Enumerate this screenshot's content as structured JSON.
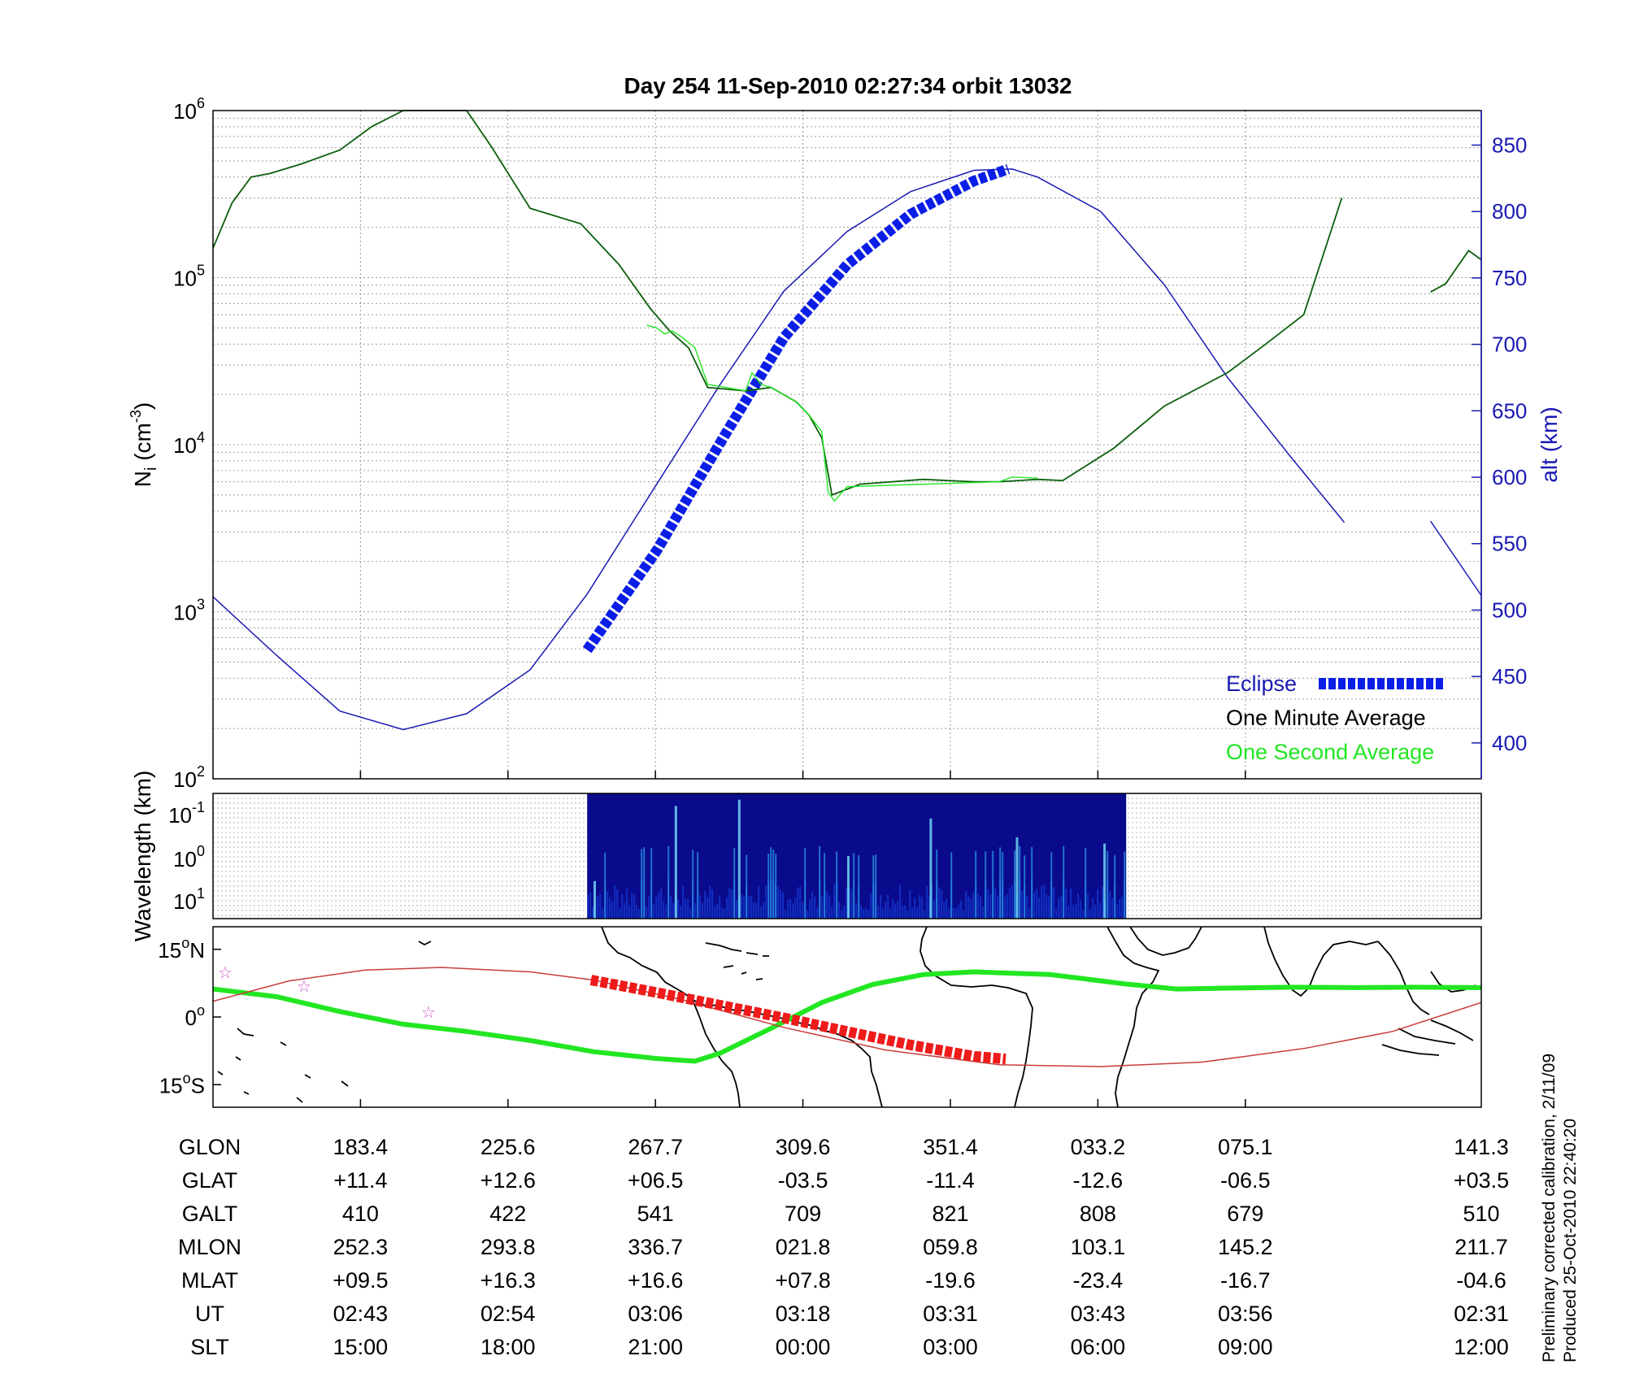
{
  "title": "Day 254  11-Sep-2010 02:27:34   orbit 13032",
  "colors": {
    "eclipse": "#0a1ee6",
    "altitude": "#1a1ab4",
    "minute_avg": "#0b5e0b",
    "second_avg": "#22e622",
    "track_red": "#ee1b1b",
    "track_thin": "#c83c3c",
    "stars": "#cc55cc",
    "map": "#000000",
    "spectrogram": "#0a0a8c"
  },
  "chart_data": [
    {
      "type": "line",
      "panel": "density",
      "ylabel": "N",
      "ylabel_sub": "i",
      "ylabel_unit": "(cm",
      "ylabel_unit_sup": "-3",
      "ylabel_close": ")",
      "yscale": "log",
      "ylim": [
        100,
        1000000
      ],
      "y_ticks": [
        {
          "base": "10",
          "exp": "2"
        },
        {
          "base": "10",
          "exp": "3"
        },
        {
          "base": "10",
          "exp": "4"
        },
        {
          "base": "10",
          "exp": "5"
        },
        {
          "base": "10",
          "exp": "6"
        }
      ],
      "y2label": "alt (km)",
      "y2lim": [
        373,
        876
      ],
      "y2_ticks": [
        "400",
        "450",
        "500",
        "550",
        "600",
        "650",
        "700",
        "750",
        "800",
        "850"
      ],
      "x_domain": [
        0,
        1
      ],
      "grid": true,
      "legend": {
        "position": "bottom-right",
        "entries": [
          {
            "label": "Eclipse",
            "color": "#0a1ee6"
          },
          {
            "label": "One Minute Average",
            "color": "#000000"
          },
          {
            "label": "One Second Average",
            "color": "#22e622"
          }
        ]
      },
      "series": [
        {
          "name": "alt (km)",
          "axis": "right",
          "x": [
            0.0,
            0.05,
            0.1,
            0.15,
            0.2,
            0.25,
            0.295,
            0.35,
            0.4,
            0.45,
            0.5,
            0.55,
            0.6,
            0.63,
            0.65,
            0.7,
            0.75,
            0.8,
            0.85,
            0.892
          ],
          "y": [
            510,
            466,
            424,
            410,
            422,
            455,
            512,
            595,
            670,
            740,
            785,
            815,
            831,
            832,
            826,
            800,
            745,
            675,
            615,
            566
          ]
        },
        {
          "name": "alt (km)",
          "axis": "right",
          "x": [
            0.96,
            1.0
          ],
          "y": [
            567,
            511
          ]
        },
        {
          "name": "Eclipse",
          "axis": "right",
          "x": [
            0.295,
            0.35,
            0.4,
            0.45,
            0.5,
            0.55,
            0.6,
            0.627
          ],
          "y": [
            470,
            545,
            626,
            705,
            760,
            798,
            823,
            832
          ]
        },
        {
          "name": "One Minute Average",
          "axis": "left",
          "x": [
            0.0,
            0.015,
            0.03,
            0.045,
            0.07,
            0.1,
            0.125,
            0.15,
            0.18,
            0.2,
            0.22,
            0.25,
            0.29,
            0.32,
            0.345,
            0.36,
            0.375,
            0.39,
            0.42,
            0.44,
            0.46,
            0.47,
            0.48,
            0.488,
            0.51,
            0.56,
            0.6,
            0.62,
            0.65,
            0.67,
            0.71,
            0.75,
            0.8,
            0.83,
            0.86,
            0.89
          ],
          "y": [
            150000,
            280000,
            400000,
            420000,
            480000,
            580000,
            800000,
            1000000,
            1000000,
            1000000,
            600000,
            260000,
            210000,
            120000,
            65000,
            48000,
            38000,
            22000,
            21000,
            22000,
            18000,
            15000,
            11000,
            5000,
            5800,
            6200,
            6000,
            6000,
            6200,
            6100,
            9500,
            17000,
            27000,
            40000,
            60000,
            300000
          ]
        },
        {
          "name": "One Minute Average",
          "axis": "left",
          "x": [
            0.96,
            0.972,
            0.99,
            1.0
          ],
          "y": [
            82000,
            92000,
            145000,
            128000
          ]
        },
        {
          "name": "One Second Average",
          "axis": "left",
          "x": [
            0.342,
            0.35,
            0.356,
            0.362,
            0.37,
            0.38,
            0.39,
            0.42,
            0.425,
            0.432,
            0.44,
            0.46,
            0.47,
            0.48,
            0.485,
            0.49,
            0.5,
            0.62,
            0.63,
            0.65
          ],
          "y": [
            52000,
            50000,
            46000,
            48000,
            44000,
            38000,
            23000,
            21000,
            27000,
            23000,
            22000,
            18000,
            15000,
            12000,
            5200,
            4600,
            5600,
            6000,
            6400,
            6300
          ]
        }
      ]
    },
    {
      "type": "heatmap",
      "panel": "spectrogram",
      "ylabel": "Wavelength (km)",
      "yscale": "log",
      "y_ticks": [
        {
          "base": "10",
          "exp": "-1"
        },
        {
          "base": "10",
          "exp": "0"
        },
        {
          "base": "10",
          "exp": "1"
        }
      ],
      "x_extent": [
        0.295,
        0.72
      ],
      "colormap": [
        "#0a0a8c",
        "#1438d0",
        "#2a9ee8",
        "#7ef0ff"
      ]
    },
    {
      "type": "line",
      "panel": "ground-track",
      "y_ticks": [
        {
          "num": "15",
          "deg": "o",
          "hemi": "N"
        },
        {
          "num": "0",
          "deg": "o",
          "hemi": ""
        },
        {
          "num": "15",
          "deg": "o",
          "hemi": "S"
        }
      ],
      "ylim": [
        -20,
        20
      ],
      "series": [
        {
          "name": "magnetic equator",
          "x": [
            0.0,
            0.05,
            0.1,
            0.15,
            0.2,
            0.25,
            0.3,
            0.35,
            0.38,
            0.4,
            0.44,
            0.48,
            0.52,
            0.56,
            0.6,
            0.66,
            0.72,
            0.76,
            0.8,
            0.85,
            0.9,
            0.95,
            1.0
          ],
          "y": [
            6.2,
            4.5,
            1.2,
            -1.6,
            -3.2,
            -5.2,
            -7.7,
            -9.2,
            -9.8,
            -8.0,
            -2.5,
            3.2,
            7.2,
            9.4,
            10.0,
            9.4,
            7.3,
            6.2,
            6.4,
            6.6,
            6.5,
            6.6,
            6.5
          ]
        },
        {
          "name": "orbit track",
          "x": [
            0.0,
            0.06,
            0.12,
            0.18,
            0.25,
            0.3,
            0.37,
            0.45,
            0.53,
            0.62,
            0.7,
            0.78,
            0.86,
            0.93,
            1.0
          ],
          "y": [
            3.5,
            8.0,
            10.4,
            11.0,
            10.0,
            8.2,
            3.8,
            -2.3,
            -7.3,
            -10.6,
            -11.0,
            -10.0,
            -7.0,
            -3.2,
            3.2
          ]
        },
        {
          "name": "Eclipse",
          "x": [
            0.298,
            0.35,
            0.4,
            0.45,
            0.5,
            0.55,
            0.6,
            0.625
          ],
          "y": [
            8.2,
            5.4,
            2.6,
            -0.2,
            -3.2,
            -6.2,
            -8.7,
            -9.3
          ]
        }
      ]
    }
  ],
  "table": {
    "rows": [
      {
        "label": "GLON",
        "values": [
          "183.4",
          "225.6",
          "267.7",
          "309.6",
          "351.4",
          "033.2",
          "075.1",
          "141.3"
        ]
      },
      {
        "label": "GLAT",
        "values": [
          "+11.4",
          "+12.6",
          "+06.5",
          "-03.5",
          "-11.4",
          "-12.6",
          "-06.5",
          "+03.5"
        ]
      },
      {
        "label": "GALT",
        "values": [
          "410",
          "422",
          "541",
          "709",
          "821",
          "808",
          "679",
          "510"
        ]
      },
      {
        "label": "MLON",
        "values": [
          "252.3",
          "293.8",
          "336.7",
          "021.8",
          "059.8",
          "103.1",
          "145.2",
          "211.7"
        ]
      },
      {
        "label": "MLAT",
        "values": [
          "+09.5",
          "+16.3",
          "+16.6",
          "+07.8",
          "-19.6",
          "-23.4",
          "-16.7",
          "-04.6"
        ]
      },
      {
        "label": "UT",
        "values": [
          "02:43",
          "02:54",
          "03:06",
          "03:18",
          "03:31",
          "03:43",
          "03:56",
          "02:31"
        ]
      },
      {
        "label": "SLT",
        "values": [
          "15:00",
          "18:00",
          "21:00",
          "00:00",
          "03:00",
          "06:00",
          "09:00",
          "12:00"
        ]
      }
    ]
  },
  "footnote": {
    "line1": "Preliminary corrected calibration, 2/11/09",
    "line2": "Produced 25-Oct-2010 22:40:20"
  }
}
